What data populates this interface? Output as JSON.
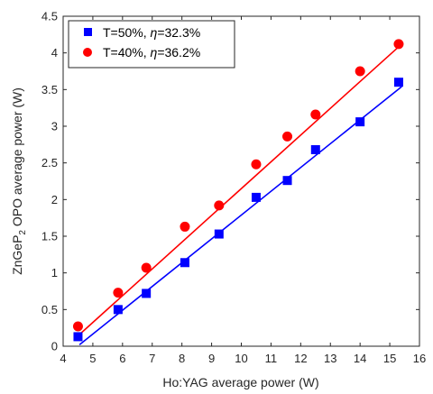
{
  "chart_data": {
    "type": "scatter",
    "xlabel": "Ho:YAG average power (W)",
    "ylabel_parts": [
      "ZnGeP",
      "2",
      " OPO average power (W)"
    ],
    "xlim": [
      4,
      16
    ],
    "ylim": [
      0,
      4.5
    ],
    "xticks": [
      4,
      5,
      6,
      7,
      8,
      9,
      10,
      11,
      12,
      13,
      14,
      15,
      16
    ],
    "yticks": [
      0,
      0.5,
      1,
      1.5,
      2,
      2.5,
      3,
      3.5,
      4,
      4.5
    ],
    "grid": false,
    "legend_position": "top-left",
    "series": [
      {
        "legend": {
          "prefix": "T=50%, ",
          "eta": "η",
          "suffix": "=32.3%"
        },
        "marker": "square",
        "color": "#0000ff",
        "x": [
          4.5,
          5.85,
          6.8,
          8.1,
          9.25,
          10.5,
          11.55,
          12.5,
          14.0,
          15.3
        ],
        "y": [
          0.13,
          0.5,
          0.72,
          1.14,
          1.53,
          2.03,
          2.26,
          2.68,
          3.06,
          3.6
        ],
        "fit": {
          "x": [
            4.55,
            15.4
          ],
          "y": [
            0.02,
            3.54
          ]
        }
      },
      {
        "legend": {
          "prefix": "T=40%, ",
          "eta": "η",
          "suffix": "=36.2%"
        },
        "marker": "circle",
        "color": "#ff0000",
        "x": [
          4.5,
          5.85,
          6.8,
          8.1,
          9.25,
          10.5,
          11.55,
          12.5,
          14.0,
          15.3
        ],
        "y": [
          0.27,
          0.73,
          1.07,
          1.63,
          1.92,
          2.48,
          2.86,
          3.16,
          3.75,
          4.12
        ],
        "fit": {
          "x": [
            4.55,
            15.4
          ],
          "y": [
            0.16,
            4.12
          ]
        }
      }
    ]
  }
}
